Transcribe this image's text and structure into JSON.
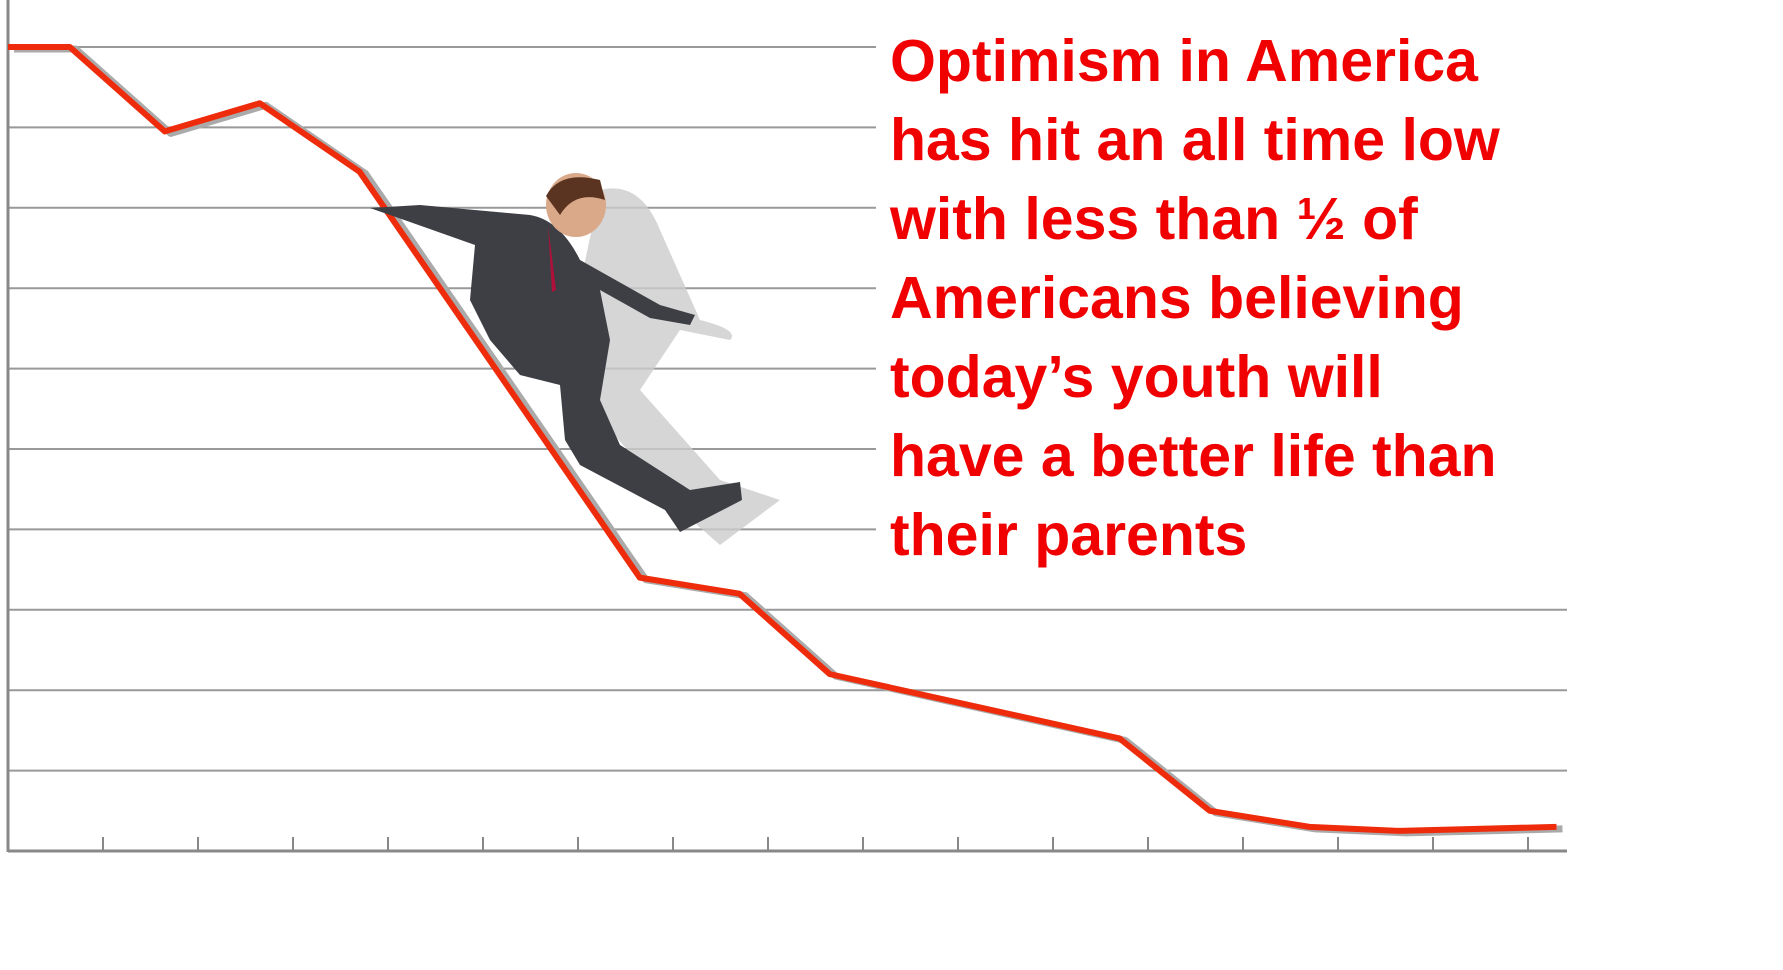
{
  "chart_data": {
    "type": "line",
    "title_lines": [
      "Optimism in America",
      "has hit an all time low",
      "with less than ½ of",
      "Americans believing",
      "today’s youth will",
      "have a better life than",
      "their parents"
    ],
    "x": [
      0,
      0.65,
      1.65,
      2.65,
      3.7,
      6.65,
      7.7,
      8.65,
      11.7,
      12.65,
      13.7,
      14.65,
      16.3
    ],
    "series": [
      {
        "color": "#ee2c0c",
        "values": [
          10,
          10,
          8.95,
          9.3,
          8.45,
          3.4,
          3.2,
          2.2,
          1.4,
          0.5,
          0.3,
          0.25,
          0.3
        ]
      }
    ],
    "xlim": [
      0,
      16.5
    ],
    "xticks": [
      1,
      2,
      3,
      4,
      5,
      6,
      7,
      8,
      9,
      10,
      11,
      12,
      13,
      14,
      15,
      16
    ],
    "ylim": [
      0,
      10
    ],
    "yticks": [
      1,
      2,
      3,
      4,
      5,
      6,
      7,
      8,
      9,
      10
    ],
    "grid": true
  }
}
